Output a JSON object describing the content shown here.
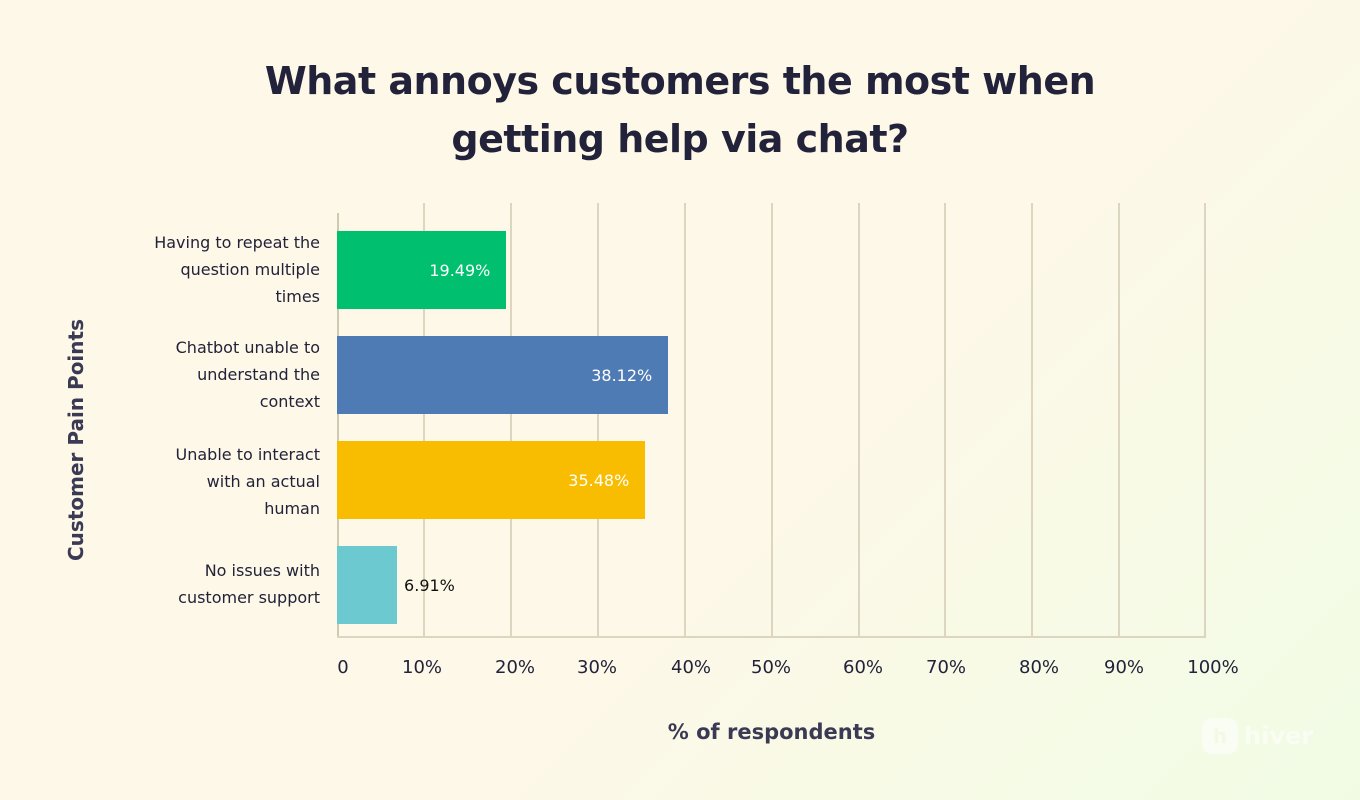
{
  "title": {
    "line1": "What annoys customers the most when",
    "line2": "getting help via chat?"
  },
  "axes": {
    "ylabel": "Customer Pain Points",
    "xlabel": "% of respondents",
    "ticks": [
      "0",
      "10%",
      "20%",
      "30%",
      "40%",
      "50%",
      "60%",
      "70%",
      "80%",
      "90%",
      "100%"
    ]
  },
  "bars": [
    {
      "label_lines": [
        "Having to repeat the",
        "question multiple",
        "times"
      ],
      "value": 19.49,
      "value_label": "19.49%",
      "color": "#00bf6f"
    },
    {
      "label_lines": [
        "Chatbot unable to",
        "understand the",
        "context"
      ],
      "value": 38.12,
      "value_label": "38.12%",
      "color": "#4f7bb5"
    },
    {
      "label_lines": [
        "Unable to interact",
        "with an actual",
        "human"
      ],
      "value": 35.48,
      "value_label": "35.48%",
      "color": "#f8bd00"
    },
    {
      "label_lines": [
        "No issues with",
        "customer support"
      ],
      "value": 6.91,
      "value_label": "6.91%",
      "color": "#6cc9cf"
    }
  ],
  "logo": {
    "mark": "h",
    "text": "hiver"
  },
  "chart_data": {
    "type": "bar",
    "orientation": "horizontal",
    "title": "What annoys customers the most when getting help via chat?",
    "categories": [
      "Having to repeat the question multiple times",
      "Chatbot unable to understand the context",
      "Unable to interact with an actual human",
      "No issues with customer support"
    ],
    "values": [
      19.49,
      38.12,
      35.48,
      6.91
    ],
    "value_labels": [
      "19.49%",
      "38.12%",
      "35.48%",
      "6.91%"
    ],
    "colors": [
      "#00bf6f",
      "#4f7bb5",
      "#f8bd00",
      "#6cc9cf"
    ],
    "xlabel": "% of respondents",
    "ylabel": "Customer Pain Points",
    "xlim": [
      0,
      100
    ],
    "xticks": [
      "0",
      "10%",
      "20%",
      "30%",
      "40%",
      "50%",
      "60%",
      "70%",
      "80%",
      "90%",
      "100%"
    ],
    "grid": "vertical",
    "legend": "none"
  }
}
